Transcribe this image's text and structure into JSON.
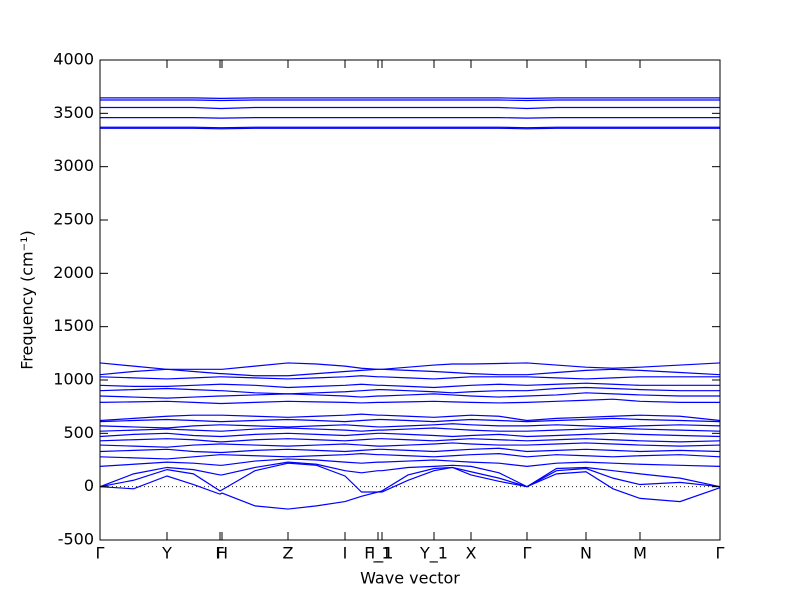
{
  "chart_data": {
    "type": "line",
    "xlabel": "Wave vector",
    "ylabel": "Frequency (cm⁻¹)",
    "color": "#0000ff",
    "hline": 0,
    "xlim": [
      0,
      6.2
    ],
    "xticks": [
      {
        "value": 0,
        "label": "Γ"
      },
      {
        "value": 0.67,
        "label": "Y"
      },
      {
        "value": 1.2,
        "label": "F"
      },
      {
        "value": 1.22,
        "label": "H"
      },
      {
        "value": 1.88,
        "label": "Z"
      },
      {
        "value": 2.45,
        "label": "I"
      },
      {
        "value": 2.78,
        "label": "F_1"
      },
      {
        "value": 2.82,
        "label": "I_1"
      },
      {
        "value": 3.34,
        "label": "Y_1"
      },
      {
        "value": 3.71,
        "label": "X"
      },
      {
        "value": 4.27,
        "label": "Γ"
      },
      {
        "value": 4.86,
        "label": "N"
      },
      {
        "value": 5.4,
        "label": "M"
      },
      {
        "value": 6.2,
        "label": "Γ"
      }
    ],
    "ylim": [
      -500,
      4000
    ],
    "yticks": [
      -500,
      0,
      500,
      1000,
      1500,
      2000,
      2500,
      3000,
      3500,
      4000
    ],
    "x": [
      0,
      0.335,
      0.67,
      0.935,
      1.2,
      1.22,
      1.55,
      1.88,
      2.165,
      2.45,
      2.615,
      2.78,
      2.82,
      3.08,
      3.34,
      3.525,
      3.71,
      3.99,
      4.27,
      4.565,
      4.86,
      5.13,
      5.4,
      5.8,
      6.2
    ],
    "series": [
      {
        "values": [
          0,
          -20,
          100,
          20,
          -70,
          -60,
          -180,
          -210,
          -180,
          -140,
          -90,
          -50,
          -50,
          60,
          150,
          180,
          110,
          50,
          0,
          120,
          140,
          -20,
          -110,
          -140,
          -10
        ]
      },
      {
        "values": [
          0,
          60,
          160,
          120,
          -40,
          -30,
          150,
          220,
          200,
          100,
          -50,
          -50,
          -40,
          110,
          170,
          180,
          140,
          80,
          0,
          150,
          170,
          80,
          20,
          40,
          0
        ]
      },
      {
        "values": [
          0,
          120,
          180,
          160,
          110,
          110,
          180,
          230,
          210,
          150,
          130,
          150,
          150,
          180,
          190,
          200,
          190,
          130,
          0,
          170,
          180,
          150,
          120,
          80,
          0
        ]
      },
      {
        "values": [
          190,
          210,
          230,
          220,
          200,
          200,
          240,
          260,
          250,
          230,
          220,
          230,
          230,
          240,
          250,
          240,
          230,
          220,
          190,
          220,
          230,
          220,
          210,
          200,
          190
        ]
      },
      {
        "values": [
          280,
          270,
          260,
          280,
          300,
          300,
          290,
          280,
          290,
          300,
          310,
          300,
          300,
          290,
          280,
          290,
          300,
          310,
          280,
          300,
          290,
          280,
          290,
          300,
          280
        ]
      },
      {
        "values": [
          330,
          340,
          350,
          330,
          320,
          320,
          340,
          350,
          340,
          330,
          340,
          350,
          350,
          340,
          330,
          340,
          350,
          360,
          330,
          340,
          350,
          340,
          330,
          340,
          330
        ]
      },
      {
        "values": [
          390,
          380,
          370,
          390,
          400,
          400,
          390,
          380,
          390,
          400,
          390,
          380,
          380,
          390,
          400,
          410,
          400,
          390,
          390,
          400,
          410,
          400,
          390,
          380,
          390
        ]
      },
      {
        "values": [
          430,
          440,
          450,
          440,
          420,
          420,
          440,
          450,
          440,
          430,
          440,
          450,
          450,
          440,
          430,
          440,
          450,
          440,
          430,
          440,
          450,
          440,
          430,
          420,
          430
        ]
      },
      {
        "values": [
          470,
          490,
          500,
          480,
          470,
          470,
          490,
          500,
          490,
          480,
          490,
          500,
          500,
          490,
          480,
          470,
          480,
          490,
          470,
          480,
          490,
          500,
          490,
          480,
          470
        ]
      },
      {
        "values": [
          520,
          530,
          540,
          530,
          520,
          520,
          540,
          550,
          540,
          530,
          520,
          530,
          530,
          540,
          550,
          540,
          530,
          520,
          520,
          530,
          540,
          550,
          540,
          530,
          520
        ]
      },
      {
        "values": [
          570,
          560,
          550,
          570,
          580,
          580,
          570,
          560,
          570,
          580,
          570,
          560,
          560,
          570,
          580,
          590,
          580,
          570,
          570,
          580,
          570,
          560,
          570,
          580,
          570
        ]
      },
      {
        "values": [
          610,
          620,
          630,
          620,
          610,
          610,
          620,
          630,
          620,
          610,
          620,
          630,
          630,
          620,
          610,
          620,
          630,
          620,
          610,
          620,
          630,
          640,
          630,
          620,
          610
        ]
      },
      {
        "values": [
          620,
          640,
          660,
          670,
          670,
          670,
          660,
          650,
          660,
          670,
          680,
          670,
          670,
          660,
          650,
          660,
          670,
          660,
          620,
          640,
          650,
          660,
          670,
          660,
          620
        ]
      },
      {
        "values": [
          790,
          795,
          800,
          790,
          780,
          780,
          790,
          800,
          795,
          790,
          785,
          790,
          790,
          795,
          800,
          795,
          790,
          785,
          790,
          800,
          810,
          820,
          800,
          790,
          790
        ]
      },
      {
        "values": [
          850,
          840,
          830,
          840,
          850,
          850,
          860,
          870,
          860,
          850,
          840,
          850,
          850,
          860,
          870,
          860,
          850,
          840,
          850,
          860,
          880,
          870,
          860,
          850,
          850
        ]
      },
      {
        "values": [
          900,
          910,
          920,
          910,
          900,
          900,
          880,
          870,
          880,
          890,
          900,
          910,
          910,
          900,
          890,
          880,
          890,
          900,
          900,
          920,
          930,
          920,
          910,
          900,
          900
        ]
      },
      {
        "values": [
          950,
          940,
          940,
          950,
          960,
          960,
          950,
          930,
          940,
          950,
          960,
          950,
          950,
          940,
          930,
          940,
          950,
          960,
          950,
          960,
          970,
          960,
          950,
          950,
          950
        ]
      },
      {
        "values": [
          1030,
          1020,
          1010,
          1020,
          1030,
          1030,
          1020,
          1010,
          1020,
          1030,
          1040,
          1030,
          1030,
          1020,
          1010,
          1020,
          1030,
          1030,
          1030,
          1020,
          1010,
          1020,
          1030,
          1030,
          1030
        ]
      },
      {
        "values": [
          1050,
          1080,
          1100,
          1080,
          1060,
          1060,
          1040,
          1040,
          1060,
          1080,
          1090,
          1100,
          1100,
          1090,
          1080,
          1070,
          1060,
          1050,
          1050,
          1070,
          1090,
          1100,
          1090,
          1070,
          1050
        ]
      },
      {
        "values": [
          1160,
          1130,
          1100,
          1100,
          1100,
          1100,
          1130,
          1160,
          1150,
          1130,
          1110,
          1100,
          1100,
          1120,
          1140,
          1150,
          1150,
          1155,
          1160,
          1140,
          1120,
          1110,
          1120,
          1140,
          1160
        ]
      },
      {
        "values": [
          3360,
          3360,
          3360,
          3360,
          3355,
          3355,
          3360,
          3360,
          3360,
          3360,
          3360,
          3360,
          3360,
          3360,
          3360,
          3360,
          3360,
          3360,
          3355,
          3360,
          3360,
          3360,
          3360,
          3360,
          3360
        ]
      },
      {
        "values": [
          3370,
          3370,
          3370,
          3370,
          3365,
          3365,
          3370,
          3370,
          3370,
          3370,
          3370,
          3370,
          3370,
          3370,
          3370,
          3370,
          3370,
          3370,
          3365,
          3370,
          3370,
          3370,
          3370,
          3370,
          3370
        ]
      },
      {
        "values": [
          3460,
          3460,
          3460,
          3460,
          3455,
          3455,
          3460,
          3460,
          3460,
          3460,
          3460,
          3460,
          3460,
          3460,
          3460,
          3460,
          3460,
          3460,
          3455,
          3460,
          3460,
          3460,
          3460,
          3460,
          3460
        ]
      },
      {
        "values": [
          3555,
          3555,
          3555,
          3555,
          3545,
          3545,
          3555,
          3555,
          3555,
          3555,
          3555,
          3555,
          3555,
          3555,
          3555,
          3555,
          3555,
          3555,
          3545,
          3555,
          3555,
          3555,
          3555,
          3555,
          3555
        ]
      },
      {
        "values": [
          3625,
          3625,
          3625,
          3625,
          3620,
          3620,
          3625,
          3625,
          3625,
          3625,
          3625,
          3625,
          3625,
          3625,
          3625,
          3625,
          3625,
          3625,
          3620,
          3625,
          3625,
          3625,
          3625,
          3625,
          3625
        ]
      },
      {
        "values": [
          3645,
          3645,
          3645,
          3645,
          3640,
          3640,
          3645,
          3645,
          3645,
          3645,
          3645,
          3645,
          3645,
          3645,
          3645,
          3645,
          3645,
          3645,
          3640,
          3645,
          3645,
          3645,
          3645,
          3645,
          3645
        ]
      }
    ]
  }
}
